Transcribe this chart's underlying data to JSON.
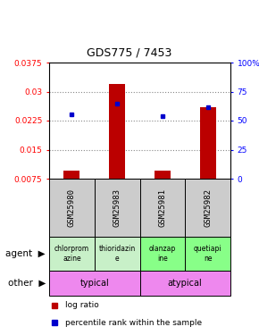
{
  "title": "GDS775 / 7453",
  "samples": [
    "GSM25980",
    "GSM25983",
    "GSM25981",
    "GSM25982"
  ],
  "log_ratio_values": [
    0.0095,
    0.032,
    0.0095,
    0.026
  ],
  "log_ratio_base": 0.0075,
  "percentile_values": [
    0.0242,
    0.0268,
    0.0236,
    0.026
  ],
  "ylim_left": [
    0.0075,
    0.0375
  ],
  "yticks_left": [
    0.0075,
    0.015,
    0.0225,
    0.03,
    0.0375
  ],
  "ytick_labels_left": [
    "0.0075",
    "0.015",
    "0.0225",
    "0.03",
    "0.0375"
  ],
  "yticks_right_pct": [
    0,
    25,
    50,
    75,
    100
  ],
  "ytick_labels_right": [
    "0",
    "25",
    "50",
    "75",
    "100%"
  ],
  "agents": [
    "chlorprom\nazine",
    "thioridazin\ne",
    "olanzap\nine",
    "quetiapi\nne"
  ],
  "agent_colors_typical": "#c8f0c8",
  "agent_colors_atypical": "#88ff88",
  "other_groups": [
    [
      "typical",
      2
    ],
    [
      "atypical",
      2
    ]
  ],
  "other_color": "#ee88ee",
  "gsm_bg_color": "#cccccc",
  "bar_color": "#bb0000",
  "dot_color": "#0000cc",
  "bar_width": 0.35,
  "hline_color": "#888888",
  "hlines": [
    0.015,
    0.0225,
    0.03
  ]
}
